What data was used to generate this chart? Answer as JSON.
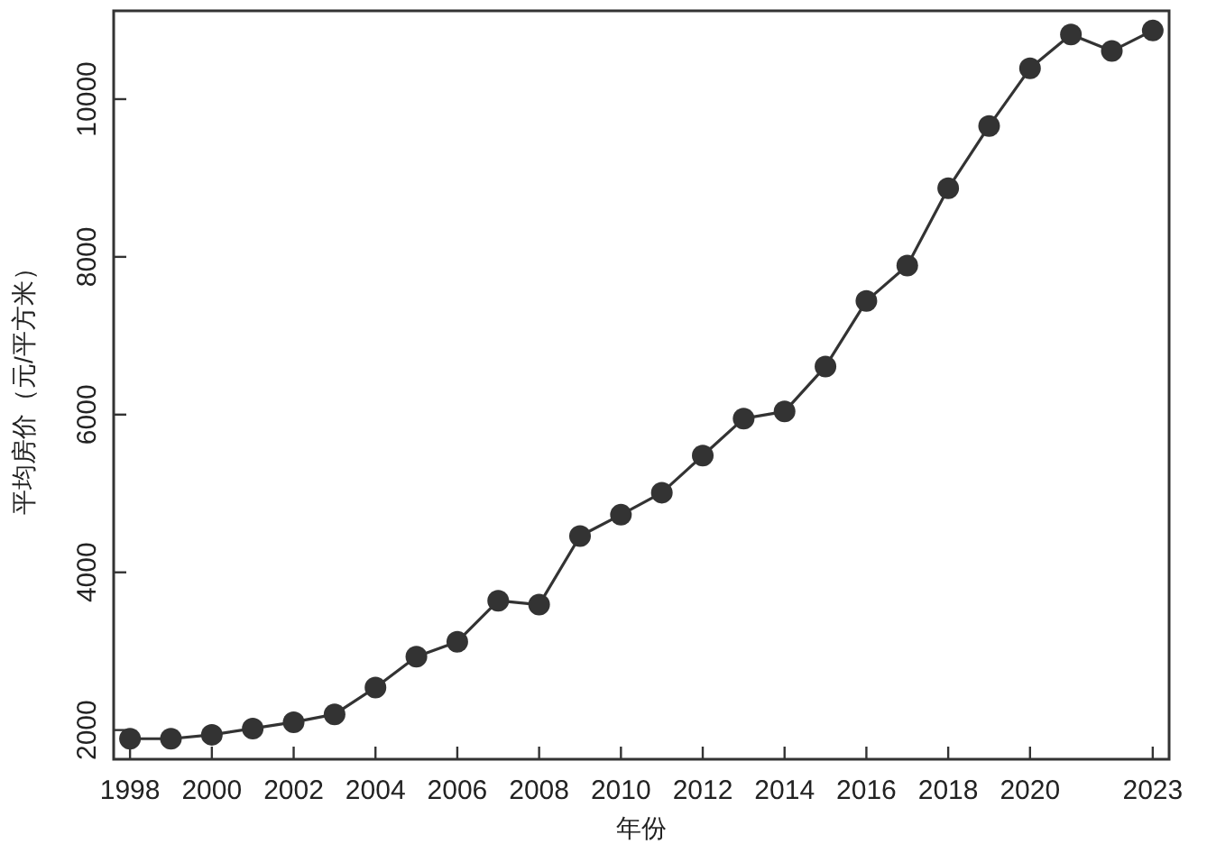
{
  "chart_data": {
    "type": "line",
    "xlabel": "年份",
    "ylabel": "平均房价（元/平方米）",
    "x": [
      1998,
      1999,
      2000,
      2001,
      2002,
      2003,
      2004,
      2005,
      2006,
      2007,
      2008,
      2009,
      2010,
      2011,
      2012,
      2013,
      2014,
      2015,
      2016,
      2017,
      2018,
      2019,
      2020,
      2021,
      2022,
      2023
    ],
    "series": [
      {
        "color": "#333333",
        "values": [
          1890,
          1890,
          1940,
          2020,
          2100,
          2200,
          2540,
          2930,
          3120,
          3640,
          3590,
          4460,
          4730,
          5010,
          5480,
          5950,
          6040,
          6610,
          7440,
          7890,
          8870,
          9660,
          10390,
          10820,
          10610,
          10870
        ]
      }
    ],
    "xlim": [
      1997.6,
      2023.4
    ],
    "xticks": [
      1998,
      2000,
      2002,
      2004,
      2006,
      2008,
      2010,
      2012,
      2014,
      2016,
      2018,
      2020,
      2023
    ],
    "ylim": [
      1630,
      11120
    ],
    "yticks": [
      2000,
      4000,
      6000,
      8000,
      10000
    ],
    "marker": "circle",
    "line_style": "solid"
  }
}
